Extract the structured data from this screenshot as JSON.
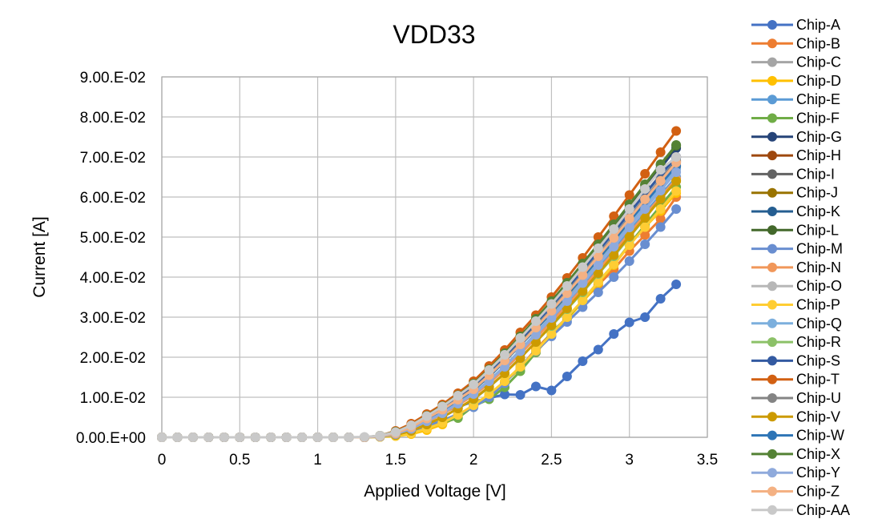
{
  "chart_data": {
    "type": "line",
    "title": "VDD33",
    "xlabel": "Applied Voltage [V]",
    "ylabel": "Current [A]",
    "xlim": [
      0,
      3.5
    ],
    "ylim": [
      0,
      0.09
    ],
    "x_ticks": [
      0,
      0.5,
      1,
      1.5,
      2,
      2.5,
      3,
      3.5
    ],
    "x_tick_labels": [
      "0",
      "0.5",
      "1",
      "1.5",
      "2",
      "2.5",
      "3",
      "3.5"
    ],
    "y_ticks": [
      0,
      0.01,
      0.02,
      0.03,
      0.04,
      0.05,
      0.06,
      0.07,
      0.08,
      0.09
    ],
    "y_tick_labels": [
      "0.00.E+00",
      "1.00.E-02",
      "2.00.E-02",
      "3.00.E-02",
      "4.00.E-02",
      "5.00.E-02",
      "6.00.E-02",
      "7.00.E-02",
      "8.00.E-02",
      "9.00.E-02"
    ],
    "grid": true,
    "legend_position": "right",
    "x": [
      0,
      0.1,
      0.2,
      0.3,
      0.4,
      0.5,
      0.6,
      0.7,
      0.8,
      0.9,
      1.0,
      1.1,
      1.2,
      1.3,
      1.4,
      1.5,
      1.6,
      1.7,
      1.8,
      1.9,
      2.0,
      2.1,
      2.2,
      2.3,
      2.4,
      2.5,
      2.6,
      2.7,
      2.8,
      2.9,
      3.0,
      3.1,
      3.2,
      3.3
    ],
    "series": [
      {
        "name": "Chip-A",
        "color": "#4472C4",
        "values": [
          0,
          0,
          0,
          0,
          0,
          0,
          0,
          0,
          0,
          0,
          0,
          0,
          0,
          0,
          0.0001,
          0.0008,
          0.0025,
          0.0045,
          0.0062,
          0.0076,
          0.0089,
          0.0098,
          0.0107,
          0.0106,
          0.0127,
          0.0117,
          0.0152,
          0.019,
          0.0219,
          0.0258,
          0.0287,
          0.03,
          0.0346,
          0.0382
        ]
      },
      {
        "name": "Chip-B",
        "color": "#ED7D31",
        "values": [
          0,
          0,
          0,
          0,
          0,
          0,
          0,
          0,
          0,
          0,
          0,
          0,
          0,
          0,
          0.0002,
          0.0004,
          0.0012,
          0.0022,
          0.0034,
          0.0055,
          0.008,
          0.0105,
          0.0138,
          0.0175,
          0.022,
          0.026,
          0.03,
          0.034,
          0.038,
          0.042,
          0.0465,
          0.0505,
          0.0545,
          0.06
        ]
      },
      {
        "name": "Chip-C",
        "color": "#A5A5A5",
        "values": [
          0,
          0,
          0,
          0,
          0,
          0,
          0,
          0,
          0,
          0,
          0,
          0,
          0,
          0,
          0.0003,
          0.001,
          0.0025,
          0.0048,
          0.007,
          0.0095,
          0.012,
          0.0152,
          0.019,
          0.023,
          0.027,
          0.031,
          0.0352,
          0.0395,
          0.0445,
          0.049,
          0.054,
          0.059,
          0.064,
          0.0685
        ]
      },
      {
        "name": "Chip-D",
        "color": "#FFC000",
        "values": [
          0,
          0,
          0,
          0,
          0,
          0,
          0,
          0,
          0,
          0,
          0,
          0,
          0,
          0,
          0.0001,
          0.0003,
          0.0008,
          0.0018,
          0.0032,
          0.0052,
          0.0078,
          0.0105,
          0.0138,
          0.0172,
          0.0212,
          0.0255,
          0.0295,
          0.0338,
          0.0385,
          0.043,
          0.048,
          0.0525,
          0.0565,
          0.061
        ]
      },
      {
        "name": "Chip-E",
        "color": "#5B9BD5",
        "values": [
          0,
          0,
          0,
          0,
          0,
          0,
          0,
          0,
          0,
          0,
          0,
          0,
          0,
          0,
          0.0002,
          0.0008,
          0.002,
          0.004,
          0.0058,
          0.0082,
          0.0105,
          0.0135,
          0.017,
          0.0208,
          0.025,
          0.029,
          0.0332,
          0.0375,
          0.0422,
          0.0468,
          0.0515,
          0.056,
          0.0605,
          0.065
        ]
      },
      {
        "name": "Chip-F",
        "color": "#70AD47",
        "values": [
          0,
          0,
          0,
          0,
          0,
          0,
          0,
          0,
          0,
          0,
          0,
          0,
          0,
          0,
          0.0002,
          0.0004,
          0.0012,
          0.0024,
          0.0036,
          0.0048,
          0.0078,
          0.0095,
          0.0125,
          0.0165,
          0.0212,
          0.0262,
          0.0298,
          0.0342,
          0.0388,
          0.0432,
          0.0482,
          0.053,
          0.0578,
          0.0625
        ]
      },
      {
        "name": "Chip-G",
        "color": "#264478",
        "values": [
          0,
          0,
          0,
          0,
          0,
          0,
          0,
          0,
          0,
          0,
          0,
          0,
          0,
          0,
          0.0003,
          0.0012,
          0.0028,
          0.0052,
          0.0075,
          0.0102,
          0.0128,
          0.0165,
          0.0205,
          0.0248,
          0.029,
          0.0332,
          0.0378,
          0.0425,
          0.0472,
          0.0522,
          0.0572,
          0.0622,
          0.0672,
          0.0722
        ]
      },
      {
        "name": "Chip-H",
        "color": "#9E480E",
        "values": [
          0,
          0,
          0,
          0,
          0,
          0,
          0,
          0,
          0,
          0,
          0,
          0,
          0,
          0,
          0.0003,
          0.0012,
          0.0028,
          0.005,
          0.0072,
          0.0098,
          0.0125,
          0.0162,
          0.02,
          0.0242,
          0.0285,
          0.0328,
          0.0372,
          0.0418,
          0.0465,
          0.0512,
          0.056,
          0.0608,
          0.0655,
          0.07
        ]
      },
      {
        "name": "Chip-I",
        "color": "#636363",
        "values": [
          0,
          0,
          0,
          0,
          0,
          0,
          0,
          0,
          0,
          0,
          0,
          0,
          0,
          0,
          0.0003,
          0.001,
          0.0025,
          0.0048,
          0.007,
          0.0095,
          0.0122,
          0.0158,
          0.0195,
          0.0235,
          0.0278,
          0.032,
          0.0365,
          0.041,
          0.0455,
          0.0502,
          0.055,
          0.0598,
          0.0645,
          0.069
        ]
      },
      {
        "name": "Chip-J",
        "color": "#997300",
        "values": [
          0,
          0,
          0,
          0,
          0,
          0,
          0,
          0,
          0,
          0,
          0,
          0,
          0,
          0,
          0.0003,
          0.001,
          0.0025,
          0.0046,
          0.0068,
          0.0092,
          0.0118,
          0.0152,
          0.019,
          0.023,
          0.027,
          0.0312,
          0.0355,
          0.04,
          0.0445,
          0.049,
          0.0538,
          0.0585,
          0.063,
          0.0675
        ]
      },
      {
        "name": "Chip-K",
        "color": "#255E91",
        "values": [
          0,
          0,
          0,
          0,
          0,
          0,
          0,
          0,
          0,
          0,
          0,
          0,
          0,
          0,
          0.0003,
          0.0011,
          0.0027,
          0.005,
          0.0072,
          0.0098,
          0.0125,
          0.016,
          0.0198,
          0.024,
          0.0282,
          0.0325,
          0.037,
          0.0415,
          0.0462,
          0.051,
          0.0558,
          0.0605,
          0.0652,
          0.0698
        ]
      },
      {
        "name": "Chip-L",
        "color": "#43682B",
        "values": [
          0,
          0,
          0,
          0,
          0,
          0,
          0,
          0,
          0,
          0,
          0,
          0,
          0,
          0,
          0.0004,
          0.0014,
          0.003,
          0.0054,
          0.0078,
          0.0105,
          0.0132,
          0.017,
          0.021,
          0.0252,
          0.0295,
          0.0338,
          0.0385,
          0.0432,
          0.048,
          0.053,
          0.058,
          0.063,
          0.068,
          0.0728
        ]
      },
      {
        "name": "Chip-M",
        "color": "#698ED0",
        "values": [
          0,
          0,
          0,
          0,
          0,
          0,
          0,
          0,
          0,
          0,
          0,
          0,
          0,
          0,
          0.0002,
          0.0006,
          0.0014,
          0.0028,
          0.0042,
          0.0058,
          0.0075,
          0.01,
          0.0135,
          0.0178,
          0.0215,
          0.0252,
          0.0288,
          0.0325,
          0.0362,
          0.04,
          0.044,
          0.0482,
          0.0525,
          0.057
        ]
      },
      {
        "name": "Chip-N",
        "color": "#F1975A",
        "values": [
          0,
          0,
          0,
          0,
          0,
          0,
          0,
          0,
          0,
          0,
          0,
          0,
          0,
          0,
          0.0002,
          0.0008,
          0.002,
          0.0038,
          0.0058,
          0.008,
          0.0105,
          0.0135,
          0.017,
          0.0208,
          0.0248,
          0.0288,
          0.033,
          0.0372,
          0.0418,
          0.0462,
          0.051,
          0.0555,
          0.06,
          0.0645
        ]
      },
      {
        "name": "Chip-O",
        "color": "#B7B7B7",
        "values": [
          0,
          0,
          0,
          0,
          0,
          0,
          0,
          0,
          0,
          0,
          0,
          0,
          0,
          0,
          0.0003,
          0.0011,
          0.0027,
          0.005,
          0.0072,
          0.0098,
          0.0125,
          0.016,
          0.0198,
          0.024,
          0.0282,
          0.0325,
          0.037,
          0.0415,
          0.0462,
          0.051,
          0.0558,
          0.0605,
          0.0652,
          0.07
        ]
      },
      {
        "name": "Chip-P",
        "color": "#FFCD33",
        "values": [
          0,
          0,
          0,
          0,
          0,
          0,
          0,
          0,
          0,
          0,
          0,
          0,
          0,
          0,
          0.0001,
          0.0004,
          0.001,
          0.0022,
          0.0036,
          0.0056,
          0.008,
          0.0108,
          0.014,
          0.0176,
          0.0216,
          0.0258,
          0.03,
          0.0342,
          0.0388,
          0.0432,
          0.048,
          0.0525,
          0.057,
          0.0615
        ]
      },
      {
        "name": "Chip-Q",
        "color": "#7CAFDD",
        "values": [
          0,
          0,
          0,
          0,
          0,
          0,
          0,
          0,
          0,
          0,
          0,
          0,
          0,
          0,
          0.0002,
          0.0008,
          0.0022,
          0.0042,
          0.0062,
          0.0086,
          0.011,
          0.0142,
          0.0178,
          0.0218,
          0.026,
          0.0302,
          0.0345,
          0.039,
          0.0436,
          0.0482,
          0.053,
          0.0578,
          0.0625,
          0.067
        ]
      },
      {
        "name": "Chip-R",
        "color": "#8CC168",
        "values": [
          0,
          0,
          0,
          0,
          0,
          0,
          0,
          0,
          0,
          0,
          0,
          0,
          0,
          0,
          0.0002,
          0.0006,
          0.0016,
          0.0032,
          0.005,
          0.0072,
          0.0095,
          0.0125,
          0.016,
          0.0198,
          0.0238,
          0.0278,
          0.032,
          0.0362,
          0.0408,
          0.0452,
          0.05,
          0.0548,
          0.0595,
          0.064
        ]
      },
      {
        "name": "Chip-S",
        "color": "#335AA1",
        "values": [
          0,
          0,
          0,
          0,
          0,
          0,
          0,
          0,
          0,
          0,
          0,
          0,
          0,
          0,
          0.0003,
          0.0011,
          0.0027,
          0.005,
          0.0072,
          0.0098,
          0.0125,
          0.0162,
          0.02,
          0.0242,
          0.0285,
          0.0328,
          0.0372,
          0.0418,
          0.0465,
          0.0512,
          0.056,
          0.0608,
          0.0655,
          0.07
        ]
      },
      {
        "name": "Chip-T",
        "color": "#D26012",
        "values": [
          0,
          0,
          0,
          0,
          0,
          0,
          0,
          0,
          0,
          0,
          0,
          0,
          0,
          0,
          0.0004,
          0.0016,
          0.0034,
          0.0058,
          0.0082,
          0.011,
          0.014,
          0.0178,
          0.0218,
          0.0262,
          0.0305,
          0.035,
          0.0398,
          0.0448,
          0.05,
          0.0552,
          0.0605,
          0.0658,
          0.0712,
          0.0765
        ]
      },
      {
        "name": "Chip-U",
        "color": "#848484",
        "values": [
          0,
          0,
          0,
          0,
          0,
          0,
          0,
          0,
          0,
          0,
          0,
          0,
          0,
          0,
          0.0003,
          0.001,
          0.0025,
          0.0048,
          0.007,
          0.0095,
          0.0122,
          0.0156,
          0.0194,
          0.0235,
          0.0276,
          0.0318,
          0.0362,
          0.0408,
          0.0455,
          0.05,
          0.0548,
          0.0595,
          0.0642,
          0.0688
        ]
      },
      {
        "name": "Chip-V",
        "color": "#CC9A00",
        "values": [
          0,
          0,
          0,
          0,
          0,
          0,
          0,
          0,
          0,
          0,
          0,
          0,
          0,
          0,
          0.0002,
          0.0006,
          0.0016,
          0.0032,
          0.005,
          0.0072,
          0.0096,
          0.0126,
          0.016,
          0.0198,
          0.0238,
          0.028,
          0.0322,
          0.0365,
          0.041,
          0.0455,
          0.0502,
          0.0548,
          0.0595,
          0.064
        ]
      },
      {
        "name": "Chip-W",
        "color": "#2E75B6",
        "values": [
          0,
          0,
          0,
          0,
          0,
          0,
          0,
          0,
          0,
          0,
          0,
          0,
          0,
          0,
          0.0003,
          0.001,
          0.0025,
          0.0046,
          0.0068,
          0.0092,
          0.0118,
          0.0152,
          0.019,
          0.023,
          0.027,
          0.0312,
          0.0356,
          0.04,
          0.0446,
          0.0492,
          0.054,
          0.0586,
          0.0632,
          0.0678
        ]
      },
      {
        "name": "Chip-X",
        "color": "#548235",
        "values": [
          0,
          0,
          0,
          0,
          0,
          0,
          0,
          0,
          0,
          0,
          0,
          0,
          0,
          0,
          0.0004,
          0.0014,
          0.003,
          0.0054,
          0.0078,
          0.0105,
          0.0134,
          0.017,
          0.021,
          0.0252,
          0.0296,
          0.034,
          0.0386,
          0.0434,
          0.0482,
          0.0532,
          0.0582,
          0.0632,
          0.0682,
          0.073
        ]
      },
      {
        "name": "Chip-Y",
        "color": "#8FAADC",
        "values": [
          0,
          0,
          0,
          0,
          0,
          0,
          0,
          0,
          0,
          0,
          0,
          0,
          0,
          0,
          0.0002,
          0.0008,
          0.0021,
          0.004,
          0.006,
          0.0084,
          0.0108,
          0.014,
          0.0176,
          0.0215,
          0.0256,
          0.0298,
          0.034,
          0.0385,
          0.043,
          0.0476,
          0.0524,
          0.057,
          0.0616,
          0.0662
        ]
      },
      {
        "name": "Chip-Z",
        "color": "#F4B183",
        "values": [
          0,
          0,
          0,
          0,
          0,
          0,
          0,
          0,
          0,
          0,
          0,
          0,
          0,
          0,
          0.0003,
          0.001,
          0.0025,
          0.0047,
          0.0069,
          0.0094,
          0.012,
          0.0155,
          0.0192,
          0.0232,
          0.0274,
          0.0316,
          0.036,
          0.0405,
          0.0452,
          0.0498,
          0.0546,
          0.0594,
          0.064,
          0.0686
        ]
      },
      {
        "name": "Chip-AA",
        "color": "#C9C9C9",
        "values": [
          0,
          0,
          0,
          0,
          0,
          0,
          0,
          0,
          0,
          0,
          0,
          0,
          0,
          0.0001,
          0.0004,
          0.0013,
          0.003,
          0.0053,
          0.0077,
          0.0104,
          0.0132,
          0.0168,
          0.0206,
          0.0248,
          0.029,
          0.0333,
          0.0378,
          0.0425,
          0.0472,
          0.052,
          0.057,
          0.062,
          0.0668,
          0.07
        ]
      }
    ]
  }
}
